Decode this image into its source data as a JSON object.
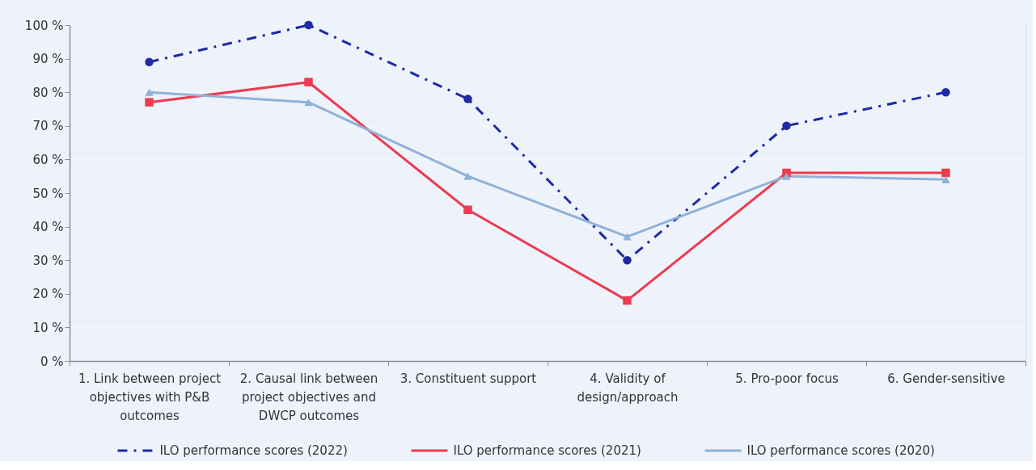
{
  "chart_data": {
    "type": "line",
    "categories": [
      "1. Link between project objectives with P&B outcomes",
      "2. Causal link between project objectives and DWCP outcomes",
      "3. Constituent support",
      "4. Validity of design/approach",
      "5. Pro-poor focus",
      "6. Gender-sensitive"
    ],
    "ylim": [
      0,
      100
    ],
    "yticks": [
      {
        "value": 0,
        "label": "0 %"
      },
      {
        "value": 10,
        "label": "10 %"
      },
      {
        "value": 20,
        "label": "20 %"
      },
      {
        "value": 30,
        "label": "30 %"
      },
      {
        "value": 40,
        "label": "40 %"
      },
      {
        "value": 50,
        "label": "50 %"
      },
      {
        "value": 60,
        "label": "60 %"
      },
      {
        "value": 70,
        "label": "70 %"
      },
      {
        "value": 80,
        "label": "80 %"
      },
      {
        "value": 90,
        "label": "90 %"
      },
      {
        "value": 100,
        "label": "100 %"
      }
    ],
    "grid": "y",
    "legend": "bottom",
    "series": [
      {
        "name": "ILO performance scores (2022)",
        "color": "#1f2aa6",
        "values": [
          89,
          100,
          78,
          30,
          70,
          80
        ],
        "marker": "circle",
        "line_style": "dashed"
      },
      {
        "name": "ILO performance scores (2021)",
        "color": "#ee3a4e",
        "values": [
          77,
          83,
          45,
          18,
          56,
          56
        ],
        "marker": "square",
        "line_style": "solid"
      },
      {
        "name": "ILO performance scores (2020)",
        "color": "#8fb1d9",
        "values": [
          80,
          77,
          55,
          37,
          55,
          54
        ],
        "marker": "triangle",
        "line_style": "solid"
      }
    ]
  }
}
